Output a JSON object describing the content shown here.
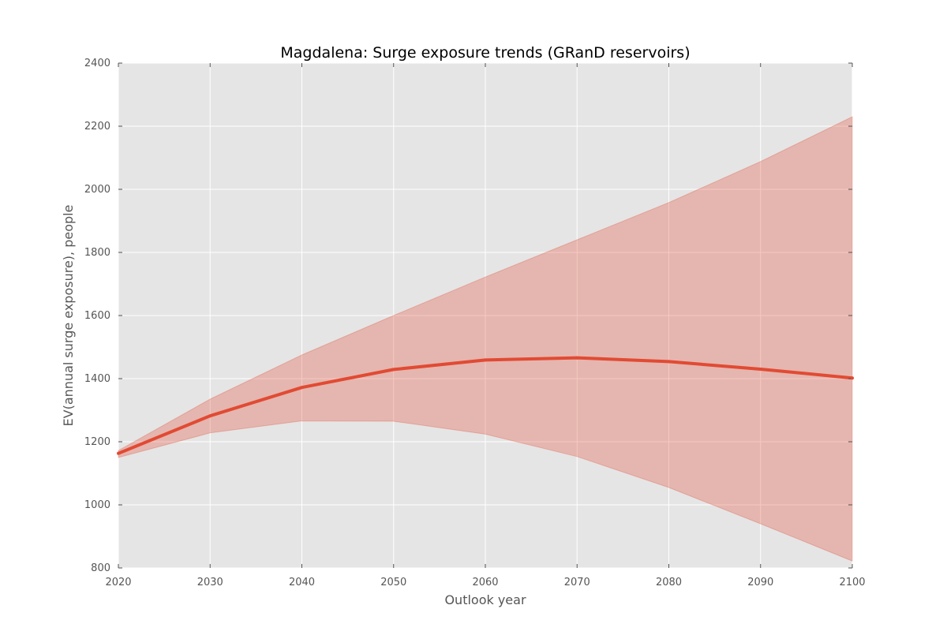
{
  "chart_data": {
    "type": "line",
    "title": "Magdalena: Surge exposure trends (GRanD reservoirs)",
    "xlabel": "Outlook year",
    "ylabel": "EV(annual surge exposure), people",
    "xlim": [
      2020,
      2100
    ],
    "ylim": [
      800,
      2400
    ],
    "x_ticks": [
      2020,
      2030,
      2040,
      2050,
      2060,
      2070,
      2080,
      2090,
      2100
    ],
    "y_ticks": [
      800,
      1000,
      1200,
      1400,
      1600,
      1800,
      2000,
      2200,
      2400
    ],
    "grid": true,
    "legend": "none",
    "x": [
      2020,
      2030,
      2040,
      2050,
      2060,
      2070,
      2080,
      2090,
      2100
    ],
    "series": [
      {
        "values": [
          1163,
          1282,
          1372,
          1429,
          1459,
          1466,
          1454,
          1430,
          1402
        ],
        "band_upper": [
          1172,
          1335,
          1475,
          1600,
          1722,
          1840,
          1958,
          2088,
          2230
        ],
        "band_lower": [
          1150,
          1228,
          1266,
          1265,
          1224,
          1153,
          1055,
          940,
          822
        ]
      }
    ],
    "colors": {
      "line": "#E24A33",
      "band": "#E24A33",
      "plot_background": "#E5E5E5",
      "grid": "#FFFFFF"
    }
  }
}
